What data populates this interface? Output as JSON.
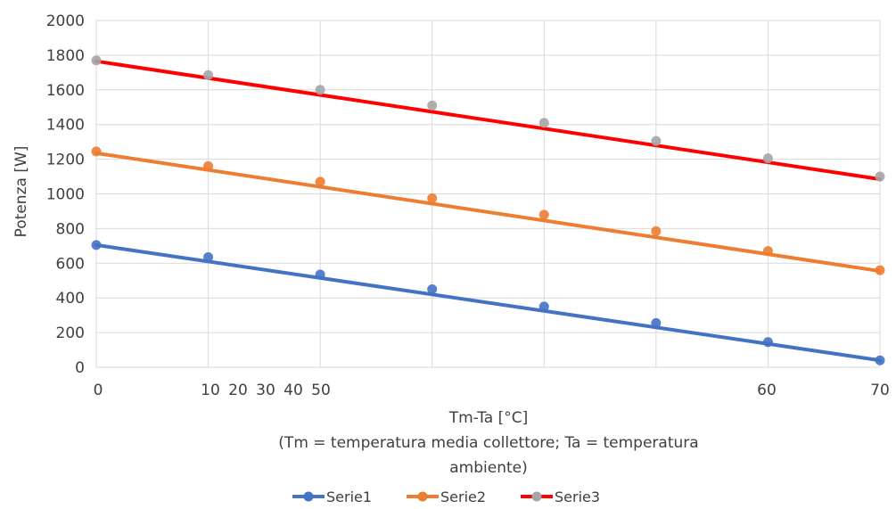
{
  "chart_data": {
    "type": "line",
    "ylabel": "Potenza  [W]",
    "xlabel_lines": [
      "Tm-Ta [°C]",
      "(Tm = temperatura  media collettore;  Ta = temperatura",
      "ambiente)"
    ],
    "ylim": [
      0,
      2000
    ],
    "yticks": [
      0,
      200,
      400,
      600,
      800,
      1000,
      1200,
      1400,
      1600,
      1800,
      2000
    ],
    "x_tick_labels": [
      "0",
      "10",
      "20",
      "30",
      "40",
      "50",
      "60",
      "70"
    ],
    "x_tick_note": "Tick labels are crowded: 0 at the first point, '10 20 30 40 50' bunched between points 2–3, 60 at point 8 and 70 at point 9.",
    "grid": true,
    "legend_position": "bottom",
    "series": [
      {
        "name": "Serie1",
        "color": "#4472c4",
        "values": [
          705,
          635,
          535,
          450,
          350,
          255,
          145,
          40
        ],
        "trend": [
          705,
          40
        ]
      },
      {
        "name": "Serie2",
        "color": "#ed7d31",
        "values": [
          1245,
          1160,
          1070,
          975,
          880,
          785,
          670,
          560
        ],
        "trend": [
          1235,
          555
        ]
      },
      {
        "name": "Serie3",
        "color": "#a5a5a5",
        "line_color": "#ff0000",
        "values": [
          1770,
          1685,
          1600,
          1510,
          1410,
          1305,
          1205,
          1100
        ],
        "trend": [
          1765,
          1085
        ]
      }
    ]
  }
}
